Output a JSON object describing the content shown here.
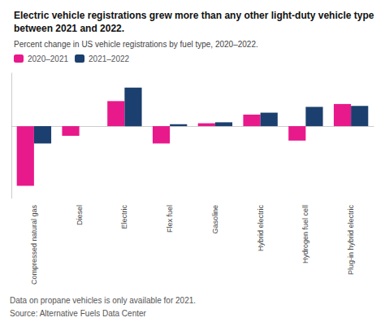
{
  "chart_data": {
    "type": "bar",
    "title": "Electric vehicle registrations grew more than any other light-duty vehicle type between 2021 and 2022.",
    "subtitle": "Percent change in US vehicle registrations by fuel type, 2020–2022.",
    "categories": [
      "Compressed natural gas",
      "Diesel",
      "Electric",
      "Flex fuel",
      "Gasoline",
      "Hybrid electric",
      "Hydrogen fuel cell",
      "Plug-in hybrid electric"
    ],
    "series": [
      {
        "name": "2020–2021",
        "color": "#e8198b",
        "values": [
          -62,
          -10,
          26,
          -18,
          3,
          12,
          -15,
          23
        ]
      },
      {
        "name": "2021–2022",
        "color": "#1b3f6e",
        "values": [
          -18,
          0,
          40,
          2,
          4,
          14,
          20,
          21
        ]
      }
    ],
    "ylim": [
      -75,
      55
    ],
    "tick_labels": "x",
    "grid": false,
    "legend": "upper left",
    "annotations": [
      "Data on propane vehicles is only available for 2021.",
      "Source: Alternative Fuels Data Center"
    ]
  }
}
